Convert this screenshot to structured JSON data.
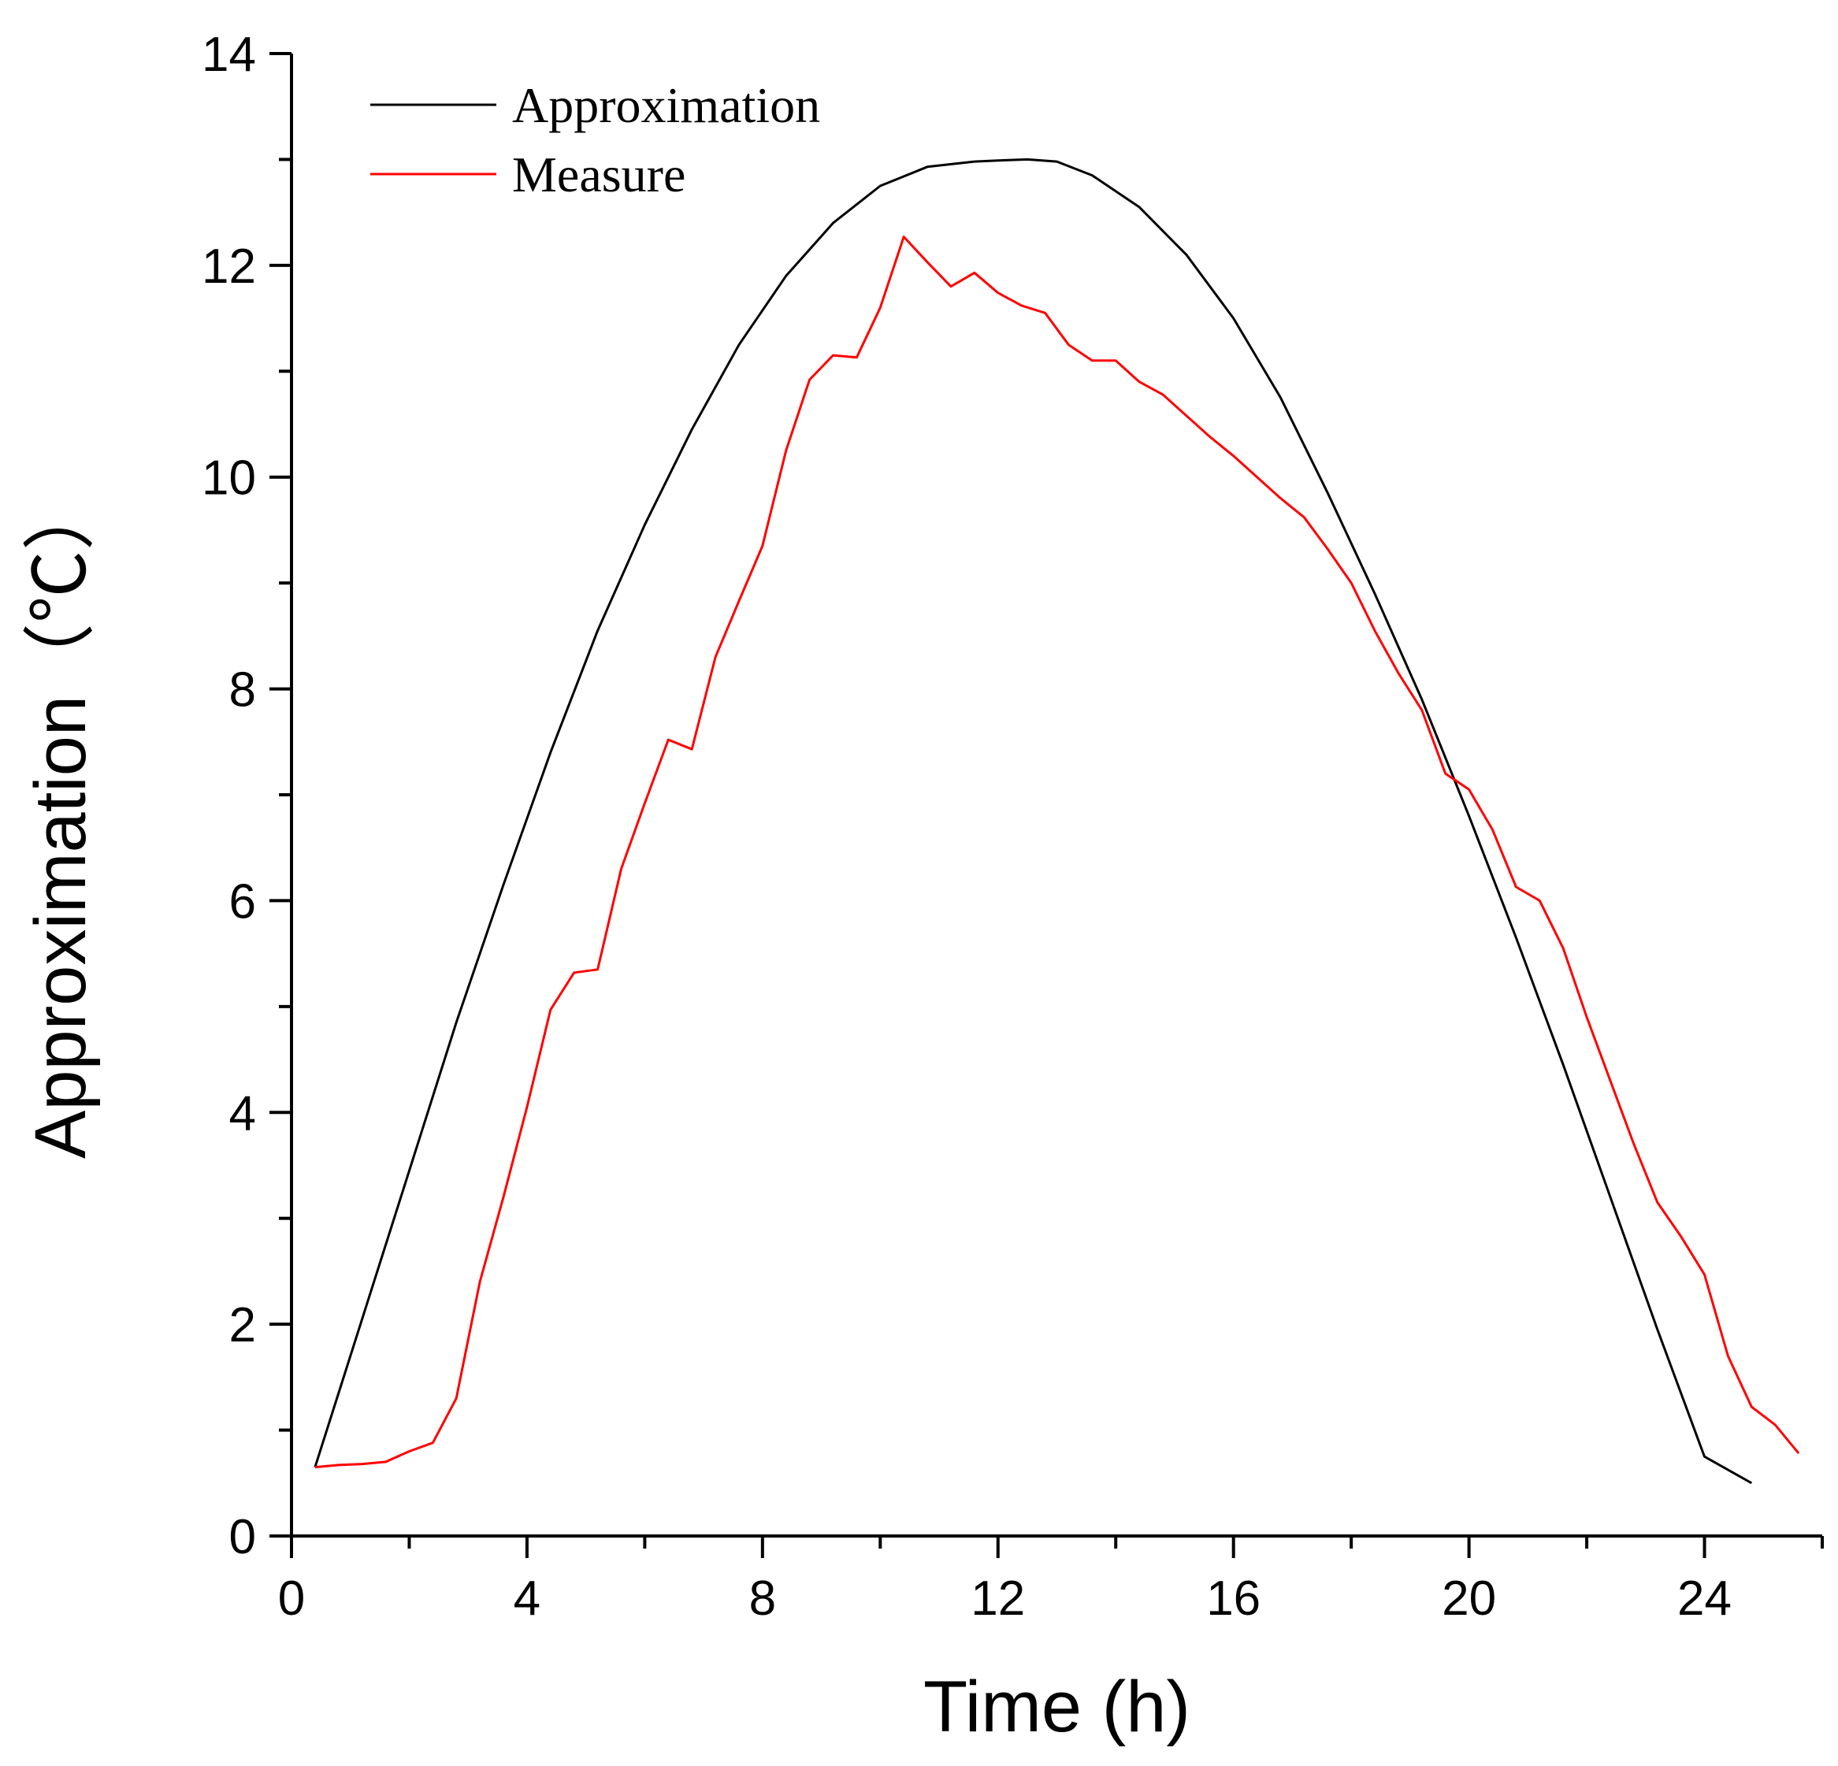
{
  "chart_data": {
    "type": "line",
    "xlabel": "Time (h)",
    "ylabel": "Approximation（℃）",
    "xlim": [
      0,
      26
    ],
    "ylim": [
      0,
      14
    ],
    "x_ticks": [
      0,
      4,
      8,
      12,
      16,
      20,
      24
    ],
    "y_ticks": [
      0,
      2,
      4,
      6,
      8,
      10,
      12,
      14
    ],
    "grid": false,
    "legend": "top-left",
    "series": [
      {
        "name": "Approximation",
        "color": "#000000",
        "x": [
          0.4,
          1.2,
          2.0,
          2.8,
          3.6,
          4.4,
          5.2,
          6.0,
          6.8,
          7.6,
          8.4,
          9.2,
          10.0,
          10.8,
          11.6,
          12.0,
          12.5,
          13.0,
          13.6,
          14.4,
          15.2,
          16.0,
          16.8,
          17.6,
          18.4,
          19.2,
          20.0,
          20.8,
          21.6,
          22.4,
          23.2,
          24.0,
          24.8
        ],
        "y": [
          0.65,
          2.05,
          3.45,
          4.85,
          6.15,
          7.4,
          8.55,
          9.55,
          10.45,
          11.25,
          11.9,
          12.4,
          12.75,
          12.93,
          12.98,
          12.99,
          13.0,
          12.98,
          12.85,
          12.55,
          12.1,
          11.5,
          10.75,
          9.85,
          8.9,
          7.9,
          6.8,
          5.65,
          4.45,
          3.2,
          1.95,
          0.75,
          0.5
        ]
      },
      {
        "name": "Measure",
        "color": "#ff0000",
        "x": [
          0.4,
          0.8,
          1.2,
          1.6,
          2.0,
          2.4,
          2.8,
          3.2,
          3.6,
          4.0,
          4.4,
          4.8,
          5.2,
          5.6,
          6.0,
          6.4,
          6.8,
          7.2,
          7.6,
          8.0,
          8.4,
          8.8,
          9.2,
          9.6,
          10.0,
          10.4,
          10.8,
          11.2,
          11.6,
          12.0,
          12.4,
          12.8,
          13.2,
          13.6,
          14.0,
          14.4,
          14.8,
          15.2,
          15.6,
          16.0,
          16.4,
          16.8,
          17.2,
          17.6,
          18.0,
          18.4,
          18.8,
          19.2,
          19.6,
          20.0,
          20.4,
          20.8,
          21.2,
          21.6,
          22.0,
          22.4,
          22.8,
          23.2,
          23.6,
          24.0,
          24.4,
          24.8,
          25.2,
          25.6
        ],
        "y": [
          0.65,
          0.67,
          0.68,
          0.7,
          0.8,
          0.88,
          1.3,
          2.4,
          3.2,
          4.05,
          4.97,
          5.32,
          5.35,
          6.3,
          6.92,
          7.52,
          7.43,
          8.3,
          8.83,
          9.35,
          10.25,
          10.92,
          11.15,
          11.13,
          11.6,
          12.27,
          12.03,
          11.8,
          11.93,
          11.74,
          11.62,
          11.55,
          11.25,
          11.1,
          11.1,
          10.9,
          10.78,
          10.58,
          10.38,
          10.2,
          10.0,
          9.8,
          9.62,
          9.32,
          9.0,
          8.55,
          8.15,
          7.8,
          7.2,
          7.05,
          6.67,
          6.13,
          6.0,
          5.55,
          4.9,
          4.3,
          3.7,
          3.15,
          2.83,
          2.47,
          1.7,
          1.22,
          1.05,
          0.78
        ]
      }
    ]
  }
}
